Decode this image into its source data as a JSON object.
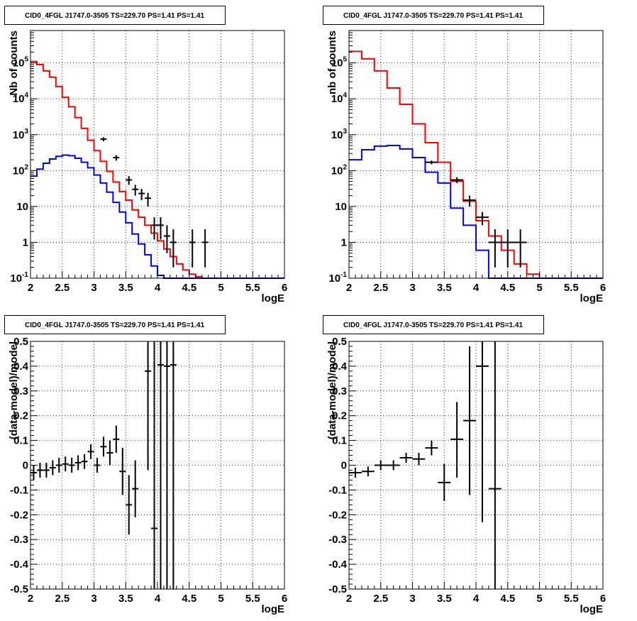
{
  "chart_data": [
    {
      "type": "line",
      "title": "CID0_4FGL J1747.0-3505 TS=229.70 PS=1.41 PS=1.41",
      "xlabel": "logE",
      "ylabel": "Nb of counts",
      "yscale": "log",
      "xlim": [
        2,
        6
      ],
      "ylim": [
        0.1,
        800000
      ],
      "xticks": [
        "2",
        "2.5",
        "3",
        "3.5",
        "4",
        "4.5",
        "5",
        "5.5",
        "6"
      ],
      "yticks": [
        "10^-1",
        "1",
        "10",
        "10^2",
        "10^3",
        "10^4",
        "10^5"
      ],
      "grid": true,
      "binwidth": 0.1,
      "series": [
        {
          "kind": "step",
          "color": "#ff0000",
          "x": [
            2.0,
            2.1,
            2.2,
            2.3,
            2.4,
            2.5,
            2.6,
            2.7,
            2.8,
            2.9,
            3.0,
            3.1,
            3.2,
            3.3,
            3.4,
            3.5,
            3.6,
            3.7,
            3.8,
            3.9,
            4.0,
            4.1,
            4.2,
            4.3,
            4.4,
            4.5,
            4.6,
            4.7,
            4.8,
            4.9,
            5.0,
            5.1,
            5.2,
            5.3,
            5.4,
            5.5,
            5.6,
            5.7,
            5.8,
            5.9
          ],
          "y": [
            110000,
            90000,
            60000,
            40000,
            22000,
            11000,
            6000,
            3000,
            1500,
            700,
            360,
            180,
            95,
            48,
            26,
            15,
            8,
            5,
            3,
            1.8,
            1.1,
            0.65,
            0.4,
            0.25,
            0.17,
            0.13,
            0.11,
            0.1,
            0.1,
            0.1,
            0.1,
            0.1,
            0.1,
            0.1,
            0.1,
            0.1,
            0.1,
            0.1,
            0.1,
            0.1
          ]
        },
        {
          "kind": "step",
          "color": "#0000ff",
          "x": [
            2.0,
            2.1,
            2.2,
            2.3,
            2.4,
            2.5,
            2.6,
            2.7,
            2.8,
            2.9,
            3.0,
            3.1,
            3.2,
            3.3,
            3.4,
            3.5,
            3.6,
            3.7,
            3.8,
            3.9,
            4.0,
            4.1,
            4.2,
            4.3,
            4.4,
            4.5,
            4.6,
            4.7,
            4.8,
            4.9,
            5.0,
            5.1,
            5.2,
            5.3,
            5.4,
            5.5,
            5.6,
            5.7,
            5.8,
            5.9
          ],
          "y": [
            70,
            110,
            160,
            210,
            250,
            270,
            260,
            220,
            170,
            120,
            75,
            45,
            25,
            13,
            7,
            3.5,
            1.7,
            0.9,
            0.45,
            0.22,
            0.12,
            0.1,
            0.1,
            0.1,
            0.1,
            0.1,
            0.1,
            0.1,
            0.1,
            0.1,
            0.1,
            0.1,
            0.1,
            0.1,
            0.1,
            0.1,
            0.1,
            0.1,
            0.1,
            0.1
          ]
        },
        {
          "kind": "errorbar",
          "color": "#000000",
          "x": [
            3.15,
            3.35,
            3.55,
            3.65,
            3.75,
            3.85,
            3.95,
            4.05,
            4.15,
            4.25,
            4.55,
            4.75
          ],
          "y": [
            750,
            230,
            55,
            30,
            23,
            17,
            3,
            3,
            1.5,
            1,
            1,
            1
          ],
          "ylo": [
            650,
            190,
            40,
            20,
            15,
            10,
            1.2,
            1.2,
            0.5,
            0.2,
            0.2,
            0.2
          ],
          "yhi": [
            850,
            270,
            70,
            40,
            31,
            24,
            5,
            5,
            3,
            2.3,
            2.3,
            2.3
          ]
        }
      ]
    },
    {
      "type": "line",
      "title": "CID0_4FGL J1747.0-3505 TS=229.70 PS=1.41 PS=1.41",
      "xlabel": "logE",
      "ylabel": "nb of counts",
      "yscale": "log",
      "xlim": [
        2,
        6
      ],
      "ylim": [
        0.1,
        800000
      ],
      "xticks": [
        "2",
        "2.5",
        "3",
        "3.5",
        "4",
        "4.5",
        "5",
        "5.5",
        "6"
      ],
      "yticks": [
        "10^-1",
        "1",
        "10",
        "10^2",
        "10^3",
        "10^4",
        "10^5"
      ],
      "grid": true,
      "binwidth": 0.2,
      "series": [
        {
          "kind": "step",
          "color": "#ff0000",
          "x": [
            2.0,
            2.2,
            2.4,
            2.6,
            2.8,
            3.0,
            3.2,
            3.4,
            3.6,
            3.8,
            4.0,
            4.2,
            4.4,
            4.6,
            4.8,
            5.0,
            5.2,
            5.4,
            5.6,
            5.8
          ],
          "y": [
            210000,
            130000,
            60000,
            20000,
            7000,
            2000,
            600,
            170,
            50,
            14,
            4,
            1.5,
            0.6,
            0.25,
            0.13,
            0.1,
            0.1,
            0.1,
            0.1,
            0.1
          ]
        },
        {
          "kind": "step",
          "color": "#0000ff",
          "x": [
            2.0,
            2.2,
            2.4,
            2.6,
            2.8,
            3.0,
            3.2,
            3.4,
            3.6,
            3.8,
            4.0,
            4.2,
            4.4,
            4.6,
            4.8,
            5.0,
            5.2,
            5.4,
            5.6,
            5.8
          ],
          "y": [
            200,
            380,
            480,
            500,
            400,
            230,
            90,
            45,
            9,
            3,
            0.6,
            0.1,
            0.1,
            0.1,
            0.1,
            0.1,
            0.1,
            0.1,
            0.1,
            0.1
          ]
        },
        {
          "kind": "errorbar",
          "color": "#000000",
          "x": [
            3.3,
            3.7,
            3.9,
            4.1,
            4.3,
            4.5,
            4.7
          ],
          "y": [
            170,
            55,
            15,
            5,
            1,
            1,
            1
          ],
          "ylo": [
            150,
            45,
            10,
            3,
            0.2,
            0.2,
            0.2
          ],
          "yhi": [
            190,
            65,
            20,
            7,
            2.3,
            2.3,
            2.3
          ]
        }
      ]
    },
    {
      "type": "scatter",
      "title": "CID0_4FGL J1747.0-3505 TS=229.70 PS=1.41 PS=1.41",
      "xlabel": "logE",
      "ylabel": "(data-model)/model",
      "xlim": [
        2,
        6
      ],
      "ylim": [
        -0.5,
        0.5
      ],
      "xticks": [
        "2",
        "2.5",
        "3",
        "3.5",
        "4",
        "4.5",
        "5",
        "5.5",
        "6"
      ],
      "yticks": [
        "-0.5",
        "-0.4",
        "-0.3",
        "-0.2",
        "-0.1",
        "0",
        "0.1",
        "0.2",
        "0.3",
        "0.4",
        "0.5"
      ],
      "grid": true,
      "series": [
        {
          "kind": "errorbar",
          "color": "#000000",
          "x": [
            2.05,
            2.15,
            2.25,
            2.35,
            2.45,
            2.55,
            2.65,
            2.75,
            2.85,
            2.95,
            3.05,
            3.15,
            3.25,
            3.35,
            3.45,
            3.55,
            3.65,
            3.85,
            3.95,
            4.05,
            4.15,
            4.25
          ],
          "y": [
            -0.03,
            -0.02,
            -0.02,
            -0.01,
            0.0,
            0.005,
            0.0,
            0.01,
            0.015,
            0.055,
            0.0,
            0.075,
            0.05,
            0.105,
            -0.025,
            -0.16,
            -0.095,
            0.38,
            -0.255,
            0.405,
            0.4,
            0.405
          ],
          "ylo": [
            -0.06,
            -0.05,
            -0.05,
            -0.04,
            -0.03,
            -0.025,
            -0.03,
            -0.02,
            -0.015,
            0.025,
            -0.03,
            0.035,
            0.0,
            0.05,
            -0.12,
            -0.28,
            -0.21,
            -0.02,
            -0.5,
            -0.5,
            -0.5,
            -0.5
          ],
          "yhi": [
            0.0,
            0.01,
            0.01,
            0.02,
            0.03,
            0.035,
            0.03,
            0.04,
            0.045,
            0.085,
            0.03,
            0.115,
            0.1,
            0.16,
            0.07,
            -0.04,
            0.02,
            0.5,
            0.5,
            0.5,
            0.5,
            0.5
          ]
        }
      ]
    },
    {
      "type": "scatter",
      "title": "CID0_4FGL J1747.0-3505 TS=229.70 PS=1.41 PS=1.41",
      "xlabel": "logE",
      "ylabel": "(data-model)/model",
      "xlim": [
        2,
        6
      ],
      "ylim": [
        -0.5,
        0.5
      ],
      "xticks": [
        "2",
        "2.5",
        "3",
        "3.5",
        "4",
        "4.5",
        "5",
        "5.5",
        "6"
      ],
      "yticks": [
        "-0.5",
        "-0.4",
        "-0.3",
        "-0.2",
        "-0.1",
        "0",
        "0.1",
        "0.2",
        "0.3",
        "0.4",
        "0.5"
      ],
      "grid": true,
      "series": [
        {
          "kind": "errorbar",
          "color": "#000000",
          "x": [
            2.1,
            2.3,
            2.5,
            2.7,
            2.9,
            3.1,
            3.3,
            3.5,
            3.7,
            3.9,
            4.1,
            4.3
          ],
          "y": [
            -0.03,
            -0.025,
            0.0,
            0.0,
            0.03,
            0.025,
            0.07,
            -0.07,
            0.105,
            0.18,
            0.4,
            -0.095
          ],
          "ylo": [
            -0.05,
            -0.045,
            -0.02,
            -0.02,
            0.01,
            0.0,
            0.04,
            -0.145,
            -0.05,
            -0.12,
            -0.23,
            -0.5
          ],
          "yhi": [
            -0.01,
            -0.005,
            0.02,
            0.02,
            0.05,
            0.05,
            0.1,
            0.005,
            0.255,
            0.48,
            0.5,
            0.5
          ]
        }
      ]
    }
  ]
}
